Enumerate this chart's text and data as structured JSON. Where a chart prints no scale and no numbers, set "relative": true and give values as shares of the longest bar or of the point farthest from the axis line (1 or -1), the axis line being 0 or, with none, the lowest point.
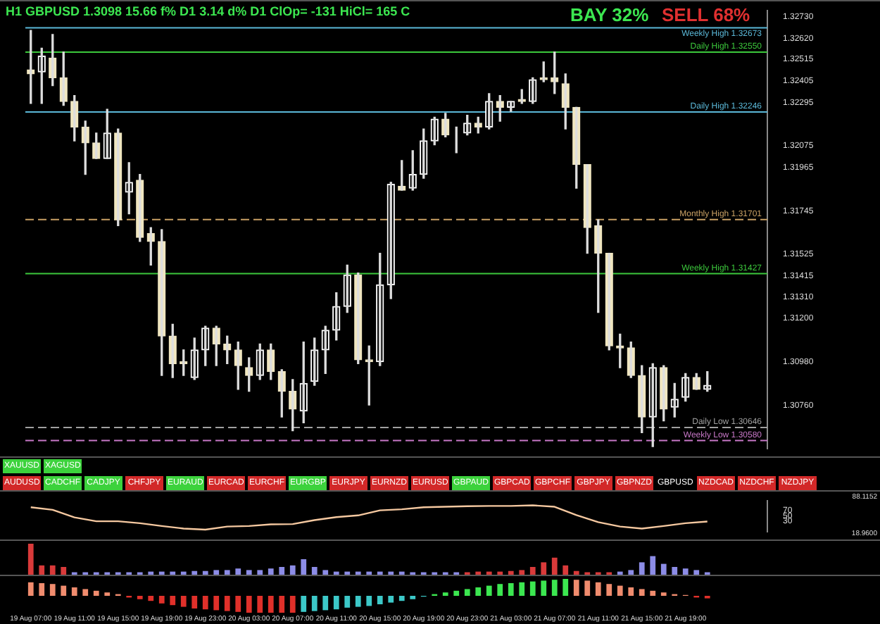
{
  "chart_data": [
    {
      "type": "candlestick",
      "title": "H1 GBPUSD 1.3098  15.66 f% D1 3.14 d% D1 ClOp= -131 HiCl= 165 C",
      "tick_labels": "y",
      "categories": [
        null,
        null,
        null,
        null,
        null,
        null,
        null,
        null,
        null,
        null,
        null,
        null,
        null,
        null,
        null,
        null,
        null,
        null,
        null,
        null,
        null,
        null,
        null,
        null,
        null,
        null,
        null,
        null,
        null,
        null,
        null,
        null,
        null,
        null,
        null,
        null,
        null,
        null,
        null,
        null,
        null,
        null,
        null,
        null,
        null,
        null,
        null,
        null,
        null,
        null,
        null,
        null,
        null,
        null,
        null,
        null,
        null,
        null,
        null,
        null,
        null,
        null,
        null,
        null,
        null,
        null,
        null,
        null
      ],
      "ohlc": [
        [
          1.3246,
          1.3266,
          1.3229,
          1.3244
        ],
        [
          1.3245,
          1.3257,
          1.3229,
          1.3253
        ],
        [
          1.3252,
          1.3264,
          1.3238,
          1.3242
        ],
        [
          1.3242,
          1.3255,
          1.3228,
          1.323
        ],
        [
          1.323,
          1.3233,
          1.321,
          1.3217
        ],
        [
          1.3217,
          1.322,
          1.3193,
          1.3209
        ],
        [
          1.3209,
          1.3214,
          1.3201,
          1.3201
        ],
        [
          1.3201,
          1.3226,
          1.3201,
          1.3214
        ],
        [
          1.3214,
          1.3216,
          1.3167,
          1.317
        ],
        [
          1.3184,
          1.3199,
          1.3173,
          1.3189
        ],
        [
          1.319,
          1.3193,
          1.3159,
          1.3161
        ],
        [
          1.3163,
          1.3166,
          1.3147,
          1.3159
        ],
        [
          1.3159,
          1.3165,
          1.3091,
          1.3111
        ],
        [
          1.3111,
          1.3117,
          1.309,
          1.3097
        ],
        [
          1.3098,
          1.3104,
          1.3091,
          1.3097
        ],
        [
          1.309,
          1.311,
          1.3089,
          1.3104
        ],
        [
          1.3104,
          1.3116,
          1.3096,
          1.3115
        ],
        [
          1.3115,
          1.3116,
          1.3096,
          1.3107
        ],
        [
          1.3107,
          1.3111,
          1.3097,
          1.3104
        ],
        [
          1.3104,
          1.3108,
          1.3084,
          1.3096
        ],
        [
          1.3095,
          1.31,
          1.3083,
          1.3091
        ],
        [
          1.3091,
          1.3107,
          1.3089,
          1.3104
        ],
        [
          1.3104,
          1.3107,
          1.3089,
          1.3093
        ],
        [
          1.3093,
          1.3094,
          1.307,
          1.3083
        ],
        [
          1.3083,
          1.3089,
          1.3063,
          1.3074
        ],
        [
          1.3073,
          1.3108,
          1.3067,
          1.3087
        ],
        [
          1.3088,
          1.311,
          1.3086,
          1.3104
        ],
        [
          1.3104,
          1.3116,
          1.3092,
          1.3114
        ],
        [
          1.3114,
          1.3133,
          1.3109,
          1.3126
        ],
        [
          1.3126,
          1.3147,
          1.3123,
          1.3142
        ],
        [
          1.3142,
          1.3143,
          1.3097,
          1.3099
        ],
        [
          1.3099,
          1.3106,
          1.3076,
          1.3098
        ],
        [
          1.3098,
          1.3153,
          1.3096,
          1.3137
        ],
        [
          1.3137,
          1.3189,
          1.313,
          1.3188
        ],
        [
          1.3187,
          1.32,
          1.3185,
          1.3185
        ],
        [
          1.3186,
          1.3205,
          1.3185,
          1.3193
        ],
        [
          1.3193,
          1.3216,
          1.3191,
          1.321
        ],
        [
          1.321,
          1.3222,
          1.3208,
          1.3221
        ],
        [
          1.3221,
          1.3224,
          1.3212,
          1.3213
        ],
        [
          1.3214,
          1.3217,
          1.3204,
          1.3214
        ],
        [
          1.3214,
          1.3223,
          1.3213,
          1.3219
        ],
        [
          1.3219,
          1.3222,
          1.3214,
          1.3217
        ],
        [
          1.3217,
          1.3234,
          1.3216,
          1.323
        ],
        [
          1.323,
          1.3233,
          1.322,
          1.3227
        ],
        [
          1.3227,
          1.323,
          1.3225,
          1.323
        ],
        [
          1.3231,
          1.3236,
          1.3229,
          1.323
        ],
        [
          1.323,
          1.3242,
          1.3229,
          1.3241
        ],
        [
          1.3242,
          1.325,
          1.324,
          1.3241
        ],
        [
          1.3242,
          1.3255,
          1.3234,
          1.324
        ],
        [
          1.3239,
          1.3244,
          1.3216,
          1.3227
        ],
        [
          1.3227,
          1.3227,
          1.3186,
          1.3198
        ],
        [
          1.3198,
          1.3198,
          1.3153,
          1.3166
        ],
        [
          1.3167,
          1.317,
          1.3123,
          1.3153
        ],
        [
          1.3153,
          1.3153,
          1.3104,
          1.3106
        ],
        [
          1.3106,
          1.3112,
          1.3095,
          1.3105
        ],
        [
          1.3105,
          1.3108,
          1.309,
          1.3091
        ],
        [
          1.3091,
          1.3096,
          1.3062,
          1.307
        ],
        [
          1.307,
          1.3097,
          1.3055,
          1.3095
        ],
        [
          1.3095,
          1.3096,
          1.3068,
          1.3074
        ],
        [
          1.3075,
          1.3087,
          1.307,
          1.3079
        ],
        [
          1.308,
          1.3092,
          1.3078,
          1.309
        ],
        [
          1.309,
          1.3092,
          1.3084,
          1.3084
        ],
        [
          1.3084,
          1.3093,
          1.3083,
          1.3086
        ],
        null,
        null,
        null,
        null,
        null
      ],
      "ylim": [
        1.3054,
        1.3276
      ],
      "yticks": [
        {
          "value": 1.3273,
          "label": "1.32730"
        },
        {
          "value": 1.3262,
          "label": "1.32620"
        },
        1.32515,
        1.32405,
        1.32295,
        1.32075,
        1.31965,
        1.31745,
        1.31525,
        1.31415,
        {
          "value": 1.3131,
          "label": "1.31310"
        },
        {
          "value": 1.312,
          "label": "1.31200"
        },
        {
          "value": 1.3098,
          "label": "1.30980"
        },
        {
          "value": 1.3076,
          "label": "1.30760"
        }
      ],
      "ref_lines": [
        {
          "axis": "y",
          "value": 1.32246,
          "label": "Daily High 1.32246",
          "color": "#5bb8d8"
        },
        {
          "axis": "y",
          "value": 1.32673,
          "label": "Weekly High 1.32673",
          "color": "#5bb8d8"
        },
        {
          "axis": "y",
          "value": 1.31701,
          "label": "Monthly High 1.31701",
          "color": "#c8a064",
          "line_style": "dashed"
        },
        {
          "axis": "y",
          "value": 1.3255,
          "label": "Daily High 1.32550",
          "color": "#3cc83c"
        },
        {
          "axis": "y",
          "value": 1.31427,
          "label": "Weekly High 1.31427",
          "color": "#3cc83c"
        },
        {
          "axis": "y",
          "value": 1.3058,
          "label": "Weekly Low 1.30580",
          "color": "#c878c8",
          "line_style": "dashed"
        },
        {
          "axis": "y",
          "value": 1.30646,
          "label": "Daily Low 1.30646",
          "color": "#a0a0a0",
          "line_style": "dashed"
        }
      ],
      "annotations": [
        "BAY 32%",
        "SELL 68%"
      ]
    },
    {
      "type": "other",
      "annotations": [
        "XAUUSD",
        "XAGUSD",
        "AUDUSD",
        "CADCHF",
        "CADJPY",
        "CHFJPY",
        "EURAUD",
        "EURCAD",
        "EURCHF",
        "EURGBP",
        "EURJPY",
        "EURNZD",
        "EURUSD",
        "GBPAUD",
        "GBPCAD",
        "GBPCHF",
        "GBPJPY",
        "GBPNZD",
        "GBPUSD",
        "NZDCAD",
        "NZDCHF",
        "NZDJPY"
      ],
      "colors": [
        "#3cd23c",
        "#3cd23c",
        "#d22828",
        "#3cd23c",
        "#3cd23c",
        "#d22828",
        "#3cd23c",
        "#d22828",
        "#d22828",
        "#3cd23c",
        "#d22828",
        "#d22828",
        "#d22828",
        "#3cd23c",
        "#d22828",
        "#d22828",
        "#d22828",
        "#d22828",
        "#000000",
        "#d22828",
        "#d22828",
        "#d22828"
      ]
    },
    {
      "type": "line",
      "tick_labels": "y",
      "categories": [
        null,
        null,
        null,
        null,
        null,
        null,
        null,
        null,
        null,
        null,
        null,
        null,
        null,
        null,
        null,
        null,
        null,
        null,
        null,
        null,
        null,
        null,
        null,
        null,
        null,
        null,
        null,
        null,
        null,
        null,
        null,
        null,
        null,
        null,
        null,
        null,
        null,
        null,
        null,
        null,
        null,
        null,
        null,
        null,
        null,
        null,
        null,
        null,
        null,
        null,
        null,
        null,
        null,
        null,
        null,
        null,
        null,
        null,
        null,
        null,
        null,
        null,
        null,
        null,
        null,
        null,
        null,
        null
      ],
      "series": [
        {
          "color": "#f5c8a0",
          "values": [
            80,
            null,
            71,
            null,
            44,
            null,
            30,
            null,
            30,
            null,
            23,
            null,
            13,
            null,
            4,
            null,
            0,
            null,
            11,
            null,
            13,
            null,
            19,
            null,
            20,
            null,
            34,
            null,
            45,
            null,
            51,
            null,
            69,
            null,
            73,
            null,
            80,
            null,
            82,
            null,
            84,
            null,
            85,
            null,
            85,
            null,
            87,
            null,
            82,
            null,
            52,
            null,
            27,
            null,
            11,
            null,
            4,
            null,
            13,
            null,
            23,
            null,
            29,
            null,
            null,
            null,
            null,
            null
          ]
        }
      ],
      "ylim": [
        -7,
        103
      ],
      "yticks": [
        30,
        50,
        70
      ],
      "annotations": [
        "88.1152",
        "18.9600"
      ]
    },
    {
      "type": "bar",
      "relative": true,
      "tick_labels": false,
      "categories": [
        null,
        null,
        null,
        null,
        null,
        null,
        null,
        null,
        null,
        null,
        null,
        null,
        null,
        null,
        null,
        null,
        null,
        null,
        null,
        null,
        null,
        null,
        null,
        null,
        null,
        null,
        null,
        null,
        null,
        null,
        null,
        null,
        null,
        null,
        null,
        null,
        null,
        null,
        null,
        null,
        null,
        null,
        null,
        null,
        null,
        null,
        null,
        null,
        null,
        null,
        null,
        null,
        null,
        null,
        null,
        null,
        null,
        null,
        null,
        null,
        null,
        null,
        null,
        null,
        null,
        null,
        null,
        null
      ],
      "values": [
        1,
        0.3,
        0.3,
        0.25,
        0.08,
        0.08,
        0.08,
        0.08,
        0.08,
        0.08,
        0.08,
        0.1,
        0.1,
        0.1,
        0.1,
        0.12,
        0.12,
        0.15,
        0.15,
        0.2,
        0.15,
        0.15,
        0.2,
        0.25,
        0.3,
        0.5,
        0.25,
        0.15,
        0.1,
        0.1,
        0.1,
        0.1,
        0.1,
        0.1,
        0.1,
        0.08,
        0.08,
        0.08,
        0.08,
        0.08,
        0.08,
        0.1,
        0.1,
        0.1,
        0.12,
        0.15,
        0.25,
        0.4,
        0.55,
        0.3,
        0.12,
        0.08,
        0.08,
        0.08,
        0.1,
        0.15,
        0.4,
        0.6,
        0.35,
        0.25,
        0.2,
        0.15,
        0.08,
        null,
        null,
        null,
        null,
        null
      ],
      "colors": [
        "#d93a3a",
        "#d93a3a",
        "#d93a3a",
        "#d93a3a",
        "#8c8ce6",
        "#8c8ce6",
        "#8c8ce6",
        "#8c8ce6",
        "#8c8ce6",
        "#8c8ce6",
        "#8c8ce6",
        "#8c8ce6",
        "#8c8ce6",
        "#8c8ce6",
        "#8c8ce6",
        "#8c8ce6",
        "#8c8ce6",
        "#8c8ce6",
        "#8c8ce6",
        "#8c8ce6",
        "#8c8ce6",
        "#8c8ce6",
        "#8c8ce6",
        "#8c8ce6",
        "#8c8ce6",
        "#8c8ce6",
        "#8c8ce6",
        "#8c8ce6",
        "#8c8ce6",
        "#8c8ce6",
        "#8c8ce6",
        "#8c8ce6",
        "#8c8ce6",
        "#8c8ce6",
        "#8c8ce6",
        "#8c8ce6",
        "#8c8ce6",
        "#8c8ce6",
        "#8c8ce6",
        "#8c8ce6",
        "#d93a3a",
        "#d93a3a",
        "#d93a3a",
        "#d93a3a",
        "#d93a3a",
        "#d93a3a",
        "#d93a3a",
        "#d93a3a",
        "#d93a3a",
        "#d93a3a",
        "#d93a3a",
        "#d93a3a",
        "#d93a3a",
        "#d93a3a",
        "#8c8ce6",
        "#8c8ce6",
        "#8c8ce6",
        "#8c8ce6",
        "#8c8ce6",
        "#8c8ce6",
        "#8c8ce6",
        "#8c8ce6",
        "#8c8ce6",
        "#8c8ce6",
        "#8c8ce6",
        "#8c8ce6",
        "#8c8ce6",
        "#8c8ce6"
      ]
    },
    {
      "type": "bar",
      "relative": true,
      "tick_labels": "x",
      "categories": [
        "19 Aug 07:00",
        null,
        null,
        null,
        "19 Aug 11:00",
        null,
        null,
        null,
        "19 Aug 15:00",
        null,
        null,
        null,
        "19 Aug 19:00",
        null,
        null,
        null,
        "19 Aug 23:00",
        null,
        null,
        null,
        "20 Aug 03:00",
        null,
        null,
        null,
        "20 Aug 07:00",
        null,
        null,
        null,
        "20 Aug 11:00",
        null,
        null,
        null,
        "20 Aug 15:00",
        null,
        null,
        null,
        "20 Aug 19:00",
        null,
        null,
        null,
        "20 Aug 23:00",
        null,
        null,
        null,
        "21 Aug 03:00",
        null,
        null,
        null,
        "21 Aug 07:00",
        null,
        null,
        null,
        "21 Aug 11:00",
        null,
        null,
        null,
        "21 Aug 15:00",
        null,
        null,
        null,
        "21 Aug 19:00",
        null,
        null,
        null,
        null,
        null,
        null,
        null
      ],
      "values": [
        0.8,
        0.75,
        0.7,
        0.6,
        0.5,
        0.4,
        0.3,
        0.2,
        0.1,
        -0.1,
        -0.2,
        -0.3,
        -0.45,
        -0.55,
        -0.65,
        -0.75,
        -0.8,
        -0.85,
        -0.9,
        -0.95,
        -1,
        -1,
        -1,
        -1,
        -1,
        -0.95,
        -0.9,
        -0.85,
        -0.8,
        -0.7,
        -0.65,
        -0.6,
        -0.5,
        -0.4,
        -0.3,
        -0.2,
        -0.05,
        0.1,
        0.2,
        0.3,
        0.4,
        0.5,
        0.6,
        0.7,
        0.75,
        0.8,
        0.85,
        0.9,
        0.95,
        1,
        0.95,
        0.9,
        0.8,
        0.7,
        0.6,
        0.5,
        0.4,
        0.3,
        0.2,
        0.1,
        0.05,
        -0.1,
        -0.15,
        null,
        null,
        null,
        null,
        null
      ],
      "colors": [
        "#f08c6e",
        "#f08c6e",
        "#f08c6e",
        "#f08c6e",
        "#f08c6e",
        "#f08c6e",
        "#f08c6e",
        "#f08c6e",
        "#f08c6e",
        "#e0302a",
        "#e0302a",
        "#e0302a",
        "#e0302a",
        "#e0302a",
        "#e0302a",
        "#e0302a",
        "#e0302a",
        "#e0302a",
        "#e0302a",
        "#e0302a",
        "#e0302a",
        "#e0302a",
        "#e0302a",
        "#e0302a",
        "#e0302a",
        "#3cc8c8",
        "#3cc8c8",
        "#3cc8c8",
        "#3cc8c8",
        "#3cc8c8",
        "#3cc8c8",
        "#3cc8c8",
        "#3cc8c8",
        "#3cc8c8",
        "#3cc8c8",
        "#3cc8c8",
        "#3cc8c8",
        "#3ce650",
        "#3ce650",
        "#3ce650",
        "#3ce650",
        "#3ce650",
        "#3ce650",
        "#3ce650",
        "#3ce650",
        "#3ce650",
        "#3ce650",
        "#3ce650",
        "#3ce650",
        "#3ce650",
        "#f08c6e",
        "#f08c6e",
        "#f08c6e",
        "#f08c6e",
        "#f08c6e",
        "#f08c6e",
        "#f08c6e",
        "#f08c6e",
        "#f08c6e",
        "#f08c6e",
        "#f08c6e",
        "#e0302a",
        "#e0302a",
        "#e0302a",
        "#e0302a",
        "#e0302a",
        "#e0302a",
        "#e0302a"
      ]
    }
  ]
}
